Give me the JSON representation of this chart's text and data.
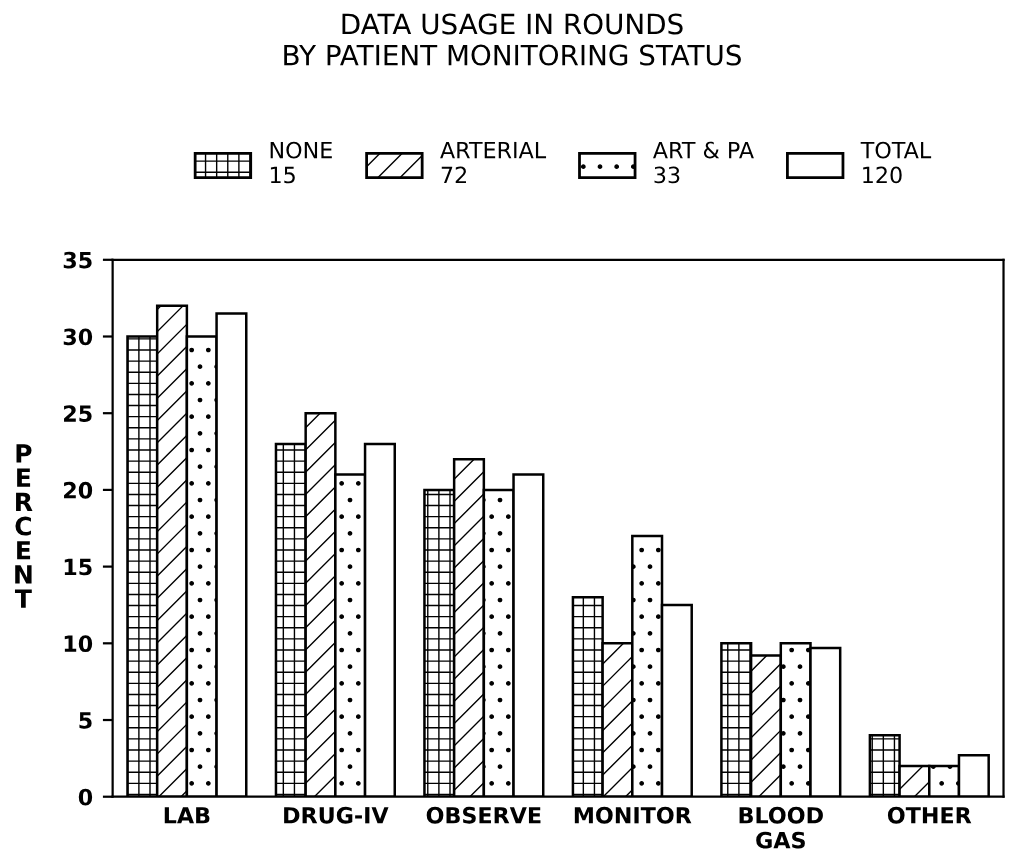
{
  "chart_data": {
    "type": "bar",
    "title": "DATA USAGE IN ROUNDS\nBY PATIENT MONITORING STATUS",
    "ylabel": "PERCENT",
    "categories": [
      "LAB",
      "DRUG-IV",
      "OBSERVE",
      "MONITOR",
      "BLOOD\nGAS",
      "OTHER"
    ],
    "series": [
      {
        "name": "NONE\n15",
        "color": "#000000",
        "values": [
          30,
          23,
          20,
          13,
          10,
          4
        ]
      },
      {
        "name": "ARTERIAL\n72",
        "color": "#000000",
        "values": [
          32,
          25,
          22,
          10,
          9.2,
          2
        ]
      },
      {
        "name": "ART & PA\n33",
        "color": "#000000",
        "values": [
          30,
          21,
          20,
          17,
          10,
          2
        ]
      },
      {
        "name": "TOTAL\n120",
        "color": "#ffffff",
        "values": [
          31.5,
          23,
          21,
          12.5,
          9.7,
          2.7
        ]
      }
    ],
    "ylim": [
      0,
      35
    ],
    "yticks": [
      0,
      5,
      10,
      15,
      20,
      25,
      30,
      35
    ],
    "grid": false,
    "legend": "top"
  }
}
